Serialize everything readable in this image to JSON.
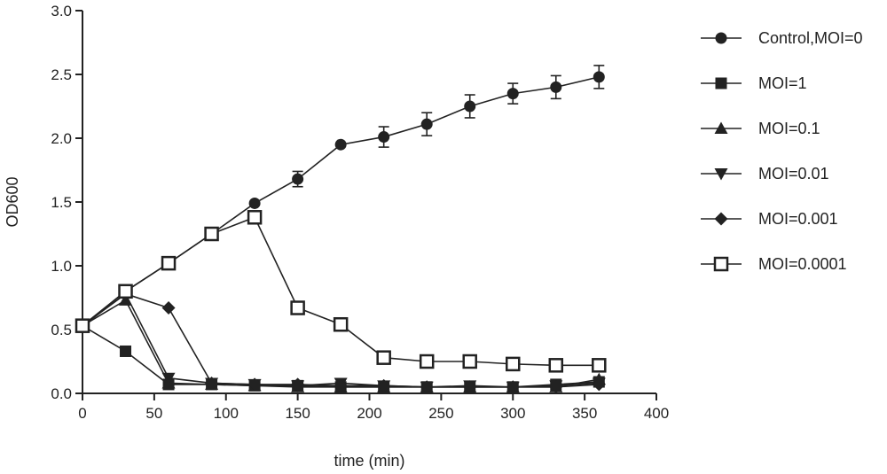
{
  "chart_data": {
    "type": "line",
    "title": "",
    "xlabel": "time (min)",
    "ylabel": "OD600",
    "xlim": [
      0,
      400
    ],
    "ylim": [
      0,
      3.0
    ],
    "x_ticks": [
      0,
      50,
      100,
      150,
      200,
      250,
      300,
      350,
      400
    ],
    "y_ticks": [
      "0.0",
      "0.5",
      "1.0",
      "1.5",
      "2.0",
      "2.5",
      "3.0"
    ],
    "grid": false,
    "legend_position": "right",
    "x": [
      0,
      30,
      60,
      90,
      120,
      150,
      180,
      210,
      240,
      270,
      300,
      330,
      360
    ],
    "series": [
      {
        "name": "Control,MOI=0",
        "marker": "circle",
        "values": [
          0.53,
          0.8,
          1.02,
          1.25,
          1.49,
          1.68,
          1.95,
          2.01,
          2.11,
          2.25,
          2.35,
          2.4,
          2.48
        ],
        "error": [
          0,
          0,
          0,
          0,
          0,
          0.06,
          0,
          0.08,
          0.09,
          0.09,
          0.08,
          0.09,
          0.09
        ]
      },
      {
        "name": "MOI=1",
        "marker": "square",
        "values": [
          0.53,
          0.33,
          0.07,
          0.07,
          0.06,
          0.06,
          0.05,
          0.05,
          0.05,
          0.05,
          0.05,
          0.07,
          0.09
        ]
      },
      {
        "name": "MOI=0.1",
        "marker": "triangle-up",
        "values": [
          0.53,
          0.73,
          0.08,
          0.07,
          0.06,
          0.05,
          0.05,
          0.05,
          0.05,
          0.05,
          0.05,
          0.05,
          0.11
        ]
      },
      {
        "name": "MOI=0.01",
        "marker": "triangle-down",
        "values": [
          0.53,
          0.78,
          0.12,
          0.08,
          0.07,
          0.06,
          0.08,
          0.06,
          0.05,
          0.06,
          0.05,
          0.06,
          0.08
        ]
      },
      {
        "name": "MOI=0.001",
        "marker": "diamond",
        "values": [
          0.53,
          0.78,
          0.67,
          0.08,
          0.07,
          0.07,
          0.06,
          0.06,
          0.05,
          0.05,
          0.05,
          0.05,
          0.07
        ]
      },
      {
        "name": "MOI=0.0001",
        "marker": "open-square",
        "values": [
          0.53,
          0.8,
          1.02,
          1.25,
          1.38,
          0.67,
          0.54,
          0.28,
          0.25,
          0.25,
          0.23,
          0.22,
          0.22
        ]
      }
    ]
  }
}
